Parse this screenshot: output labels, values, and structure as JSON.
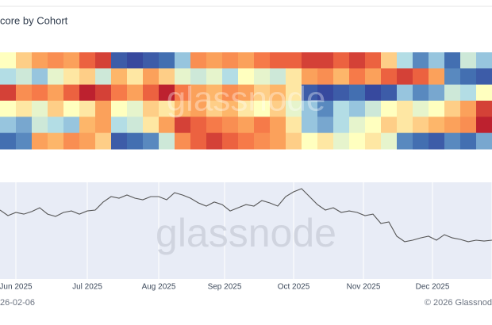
{
  "chart_data": [
    {
      "type": "heatmap",
      "title": "core by Cohort",
      "colorscale": [
        "#313695",
        "#4575b4",
        "#abd9e9",
        "#ffffbf",
        "#fdae61",
        "#f46d43",
        "#a50026"
      ],
      "zlim": [
        0,
        1
      ],
      "values": [
        [
          0.5,
          0.6,
          0.7,
          0.75,
          0.7,
          0.85,
          0.9,
          0.1,
          0.05,
          0.1,
          0.15,
          0.3,
          0.75,
          0.7,
          0.75,
          0.7,
          0.8,
          0.85,
          0.85,
          0.9,
          0.9,
          0.85,
          0.9,
          0.85,
          0.6,
          0.35,
          0.2,
          0.3,
          0.15,
          0.4,
          0.3
        ],
        [
          0.35,
          0.4,
          0.3,
          0.45,
          0.55,
          0.6,
          0.4,
          0.65,
          0.55,
          0.7,
          0.6,
          0.45,
          0.4,
          0.45,
          0.35,
          0.5,
          0.45,
          0.4,
          0.55,
          0.7,
          0.75,
          0.65,
          0.8,
          0.7,
          0.85,
          0.9,
          0.85,
          0.7,
          0.2,
          0.15,
          0.1
        ],
        [
          0.9,
          0.75,
          0.8,
          0.7,
          0.85,
          0.95,
          0.9,
          0.8,
          0.7,
          0.85,
          0.95,
          0.8,
          0.7,
          0.65,
          0.75,
          0.7,
          0.6,
          0.65,
          0.55,
          0.1,
          0.05,
          0.1,
          0.15,
          0.05,
          0.1,
          0.3,
          0.2,
          0.25,
          0.4,
          0.35,
          0.5
        ],
        [
          0.5,
          0.55,
          0.45,
          0.6,
          0.5,
          0.55,
          0.7,
          0.5,
          0.45,
          0.6,
          0.55,
          0.65,
          0.7,
          0.6,
          0.65,
          0.55,
          0.5,
          0.6,
          0.45,
          0.3,
          0.2,
          0.35,
          0.3,
          0.4,
          0.5,
          0.55,
          0.45,
          0.5,
          0.6,
          0.7,
          0.9
        ],
        [
          0.3,
          0.25,
          0.4,
          0.35,
          0.3,
          0.65,
          0.7,
          0.35,
          0.4,
          0.55,
          0.7,
          0.9,
          0.85,
          0.8,
          0.75,
          0.7,
          0.8,
          0.7,
          0.55,
          0.3,
          0.25,
          0.35,
          0.45,
          0.5,
          0.6,
          0.55,
          0.6,
          0.65,
          0.7,
          0.75,
          0.95
        ],
        [
          0.15,
          0.2,
          0.7,
          0.65,
          0.75,
          0.7,
          0.6,
          0.1,
          0.15,
          0.2,
          0.4,
          0.75,
          0.85,
          0.9,
          0.85,
          0.8,
          0.75,
          0.7,
          0.6,
          0.5,
          0.55,
          0.45,
          0.5,
          0.55,
          0.45,
          0.2,
          0.15,
          0.1,
          0.2,
          0.15,
          0.25
        ]
      ]
    },
    {
      "type": "line",
      "color": "#555555",
      "grid": true,
      "xlim": [
        0,
        62
      ],
      "ylim": [
        60000,
        130000
      ],
      "xticks": [
        {
          "value": 2,
          "label": "Jun 2025"
        },
        {
          "value": 11,
          "label": "Jul 2025"
        },
        {
          "value": 20,
          "label": "Aug 2025"
        },
        {
          "value": 28.3,
          "label": "Sep 2025"
        },
        {
          "value": 37,
          "label": "Oct 2025"
        },
        {
          "value": 45.8,
          "label": "Nov 2025"
        },
        {
          "value": 54.5,
          "label": "Dec 2025"
        },
        {
          "value": 62,
          "label": "J"
        }
      ],
      "values": [
        109900,
        105900,
        108200,
        107000,
        108800,
        111600,
        107000,
        105300,
        108200,
        109300,
        107000,
        109300,
        109900,
        115700,
        119700,
        118500,
        120800,
        118500,
        117400,
        119700,
        119700,
        117400,
        122500,
        120800,
        118500,
        115100,
        112800,
        115700,
        113900,
        109300,
        111600,
        113900,
        112800,
        116800,
        115100,
        112800,
        119700,
        123100,
        125400,
        119700,
        113900,
        109900,
        111600,
        108200,
        109300,
        108200,
        105900,
        107000,
        100200,
        101300,
        91000,
        87000,
        88100,
        89800,
        91000,
        88100,
        92100,
        89800,
        88700,
        87000,
        88100,
        87500,
        88100
      ]
    }
  ],
  "watermark": "glassnode",
  "footer_left": "26-02-06",
  "footer_right": "© 2026 Glassnod"
}
